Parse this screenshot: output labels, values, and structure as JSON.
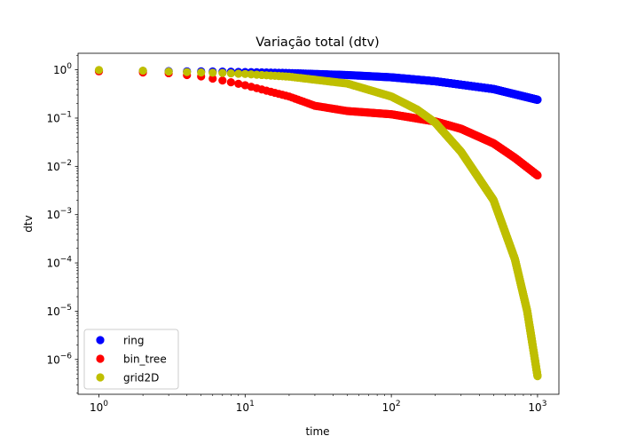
{
  "chart_data": {
    "type": "scatter",
    "title": "Variação total (dtv)",
    "xlabel": "time",
    "ylabel": "dtv",
    "xscale": "log",
    "yscale": "log",
    "xlim": [
      0.72,
      1400
    ],
    "ylim": [
      1.9e-07,
      2.2
    ],
    "grid": false,
    "legend_position": "lower-left",
    "x_ticks": [
      {
        "base": "10",
        "exp": "0",
        "value": 1
      },
      {
        "base": "10",
        "exp": "1",
        "value": 10
      },
      {
        "base": "10",
        "exp": "2",
        "value": 100
      },
      {
        "base": "10",
        "exp": "3",
        "value": 1000
      }
    ],
    "y_ticks": [
      {
        "base": "10",
        "exp": "0",
        "value": 1
      },
      {
        "base": "10",
        "exp": "−1",
        "value": 0.1
      },
      {
        "base": "10",
        "exp": "−2",
        "value": 0.01
      },
      {
        "base": "10",
        "exp": "−3",
        "value": 0.001
      },
      {
        "base": "10",
        "exp": "−4",
        "value": 0.0001
      },
      {
        "base": "10",
        "exp": "−5",
        "value": 1e-05
      },
      {
        "base": "10",
        "exp": "−6",
        "value": 1e-06
      }
    ],
    "series": [
      {
        "name": "ring",
        "color": "#0000ff",
        "points": [
          [
            1,
            0.96
          ],
          [
            2,
            0.95
          ],
          [
            3,
            0.94
          ],
          [
            4,
            0.93
          ],
          [
            5,
            0.93
          ],
          [
            7,
            0.92
          ],
          [
            10,
            0.9
          ],
          [
            20,
            0.86
          ],
          [
            50,
            0.78
          ],
          [
            100,
            0.7
          ],
          [
            200,
            0.58
          ],
          [
            500,
            0.4
          ],
          [
            1000,
            0.24
          ]
        ]
      },
      {
        "name": "bin_tree",
        "color": "#ff0000",
        "points": [
          [
            1,
            0.93
          ],
          [
            2,
            0.88
          ],
          [
            3,
            0.85
          ],
          [
            4,
            0.78
          ],
          [
            5,
            0.73
          ],
          [
            7,
            0.6
          ],
          [
            10,
            0.48
          ],
          [
            20,
            0.28
          ],
          [
            30,
            0.18
          ],
          [
            50,
            0.14
          ],
          [
            100,
            0.12
          ],
          [
            200,
            0.085
          ],
          [
            300,
            0.06
          ],
          [
            500,
            0.03
          ],
          [
            700,
            0.015
          ],
          [
            1000,
            0.0065
          ]
        ]
      },
      {
        "name": "grid2D",
        "color": "#bfbf00",
        "points": [
          [
            1,
            0.99
          ],
          [
            2,
            0.96
          ],
          [
            3,
            0.92
          ],
          [
            5,
            0.88
          ],
          [
            7,
            0.86
          ],
          [
            10,
            0.82
          ],
          [
            20,
            0.72
          ],
          [
            50,
            0.52
          ],
          [
            100,
            0.28
          ],
          [
            150,
            0.15
          ],
          [
            200,
            0.08
          ],
          [
            300,
            0.02
          ],
          [
            500,
            0.002
          ],
          [
            700,
            0.00012
          ],
          [
            850,
            1e-05
          ],
          [
            1000,
            4.5e-07
          ]
        ]
      }
    ]
  }
}
